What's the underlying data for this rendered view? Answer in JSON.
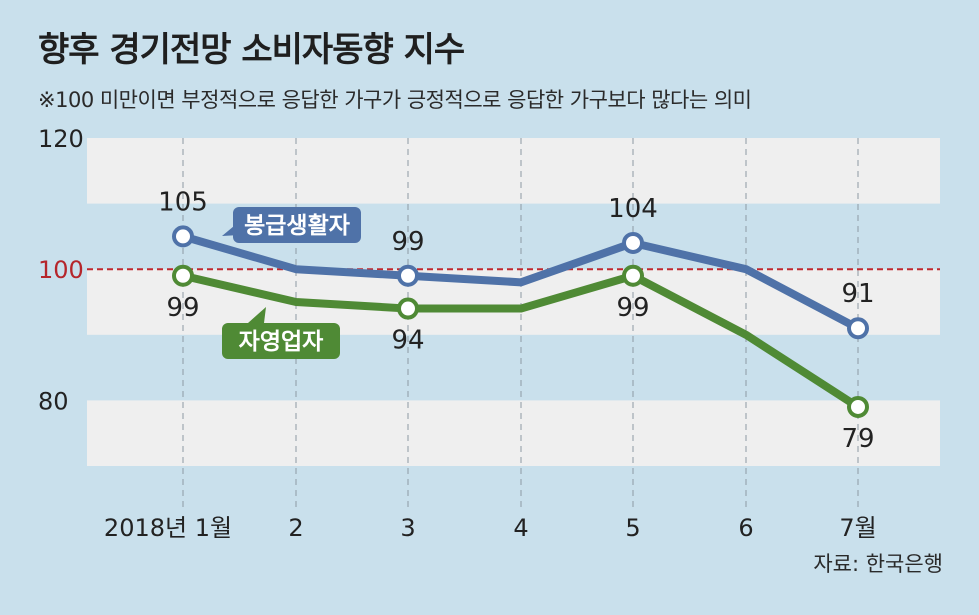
{
  "header": {
    "title": "향후 경기전망 소비자동향 지수",
    "subtitle": "※100 미만이면 부정적으로 응답한 가구가 긍정적으로 응답한 가구보다 많다는 의미"
  },
  "source": "자료: 한국은행",
  "colors": {
    "background": "#c9e0ec",
    "band": "#efefef",
    "salaried": "#4f72a8",
    "self_employed": "#4f8a35",
    "reference": "#c0272d"
  },
  "chart_data": {
    "type": "line",
    "title": "향후 경기전망 소비자동향 지수",
    "categories": [
      "2018년 1월",
      "2",
      "3",
      "4",
      "5",
      "6",
      "7월"
    ],
    "series": [
      {
        "name": "봉급생활자",
        "values": [
          105,
          100,
          99,
          98,
          104,
          100,
          91
        ],
        "labels": [
          "105",
          "",
          "99",
          "",
          "104",
          "",
          "91"
        ]
      },
      {
        "name": "자영업자",
        "values": [
          99,
          95,
          94,
          94,
          99,
          90,
          79
        ],
        "labels": [
          "99",
          "",
          "94",
          "",
          "99",
          "",
          "79"
        ]
      }
    ],
    "yticks": [
      120,
      100,
      80
    ],
    "reference_line": 100,
    "ylim": [
      70,
      120
    ],
    "xlabel": "",
    "ylabel": "",
    "grid": "alternating-bands"
  }
}
